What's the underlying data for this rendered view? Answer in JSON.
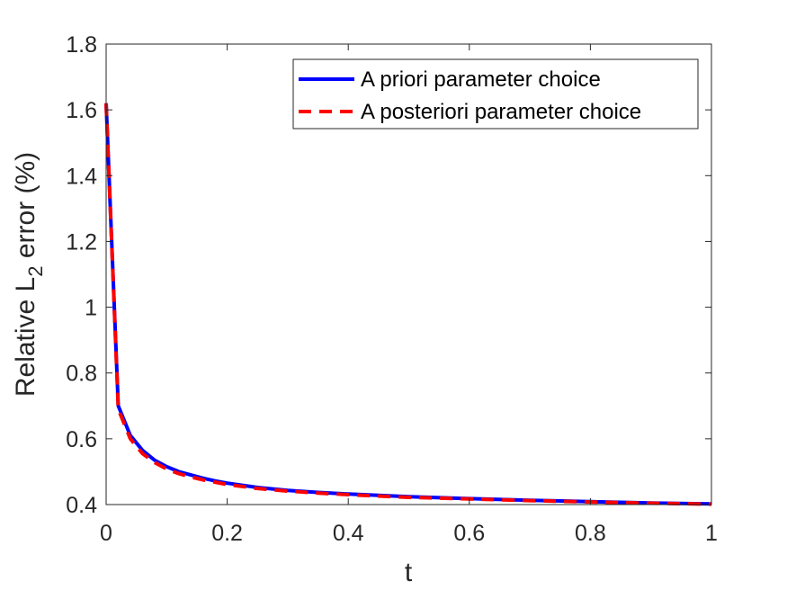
{
  "chart_data": {
    "type": "line",
    "title": "",
    "xlabel": "t",
    "ylabel": "Relative L2 error (%)",
    "ylabel_parts": {
      "before": "Relative L",
      "subscript": "2",
      "after": " error (%)"
    },
    "xlim": [
      0,
      1
    ],
    "ylim": [
      0.4,
      1.8
    ],
    "grid": false,
    "legend_position": "top-right",
    "x_ticks": [
      0,
      0.2,
      0.4,
      0.6,
      0.8,
      1
    ],
    "x_tick_labels": [
      "0",
      "0.2",
      "0.4",
      "0.6",
      "0.8",
      "1"
    ],
    "y_ticks": [
      0.4,
      0.6,
      0.8,
      1.0,
      1.2,
      1.4,
      1.6,
      1.8
    ],
    "y_tick_labels": [
      "0.4",
      "0.6",
      "0.8",
      "1",
      "1.2",
      "1.4",
      "1.6",
      "1.8"
    ],
    "series": [
      {
        "name": "A priori parameter choice",
        "color": "#0000ff",
        "style": "solid",
        "x": [
          0,
          0.02,
          0.04,
          0.06,
          0.08,
          0.1,
          0.12,
          0.14,
          0.16,
          0.18,
          0.2,
          0.25,
          0.3,
          0.35,
          0.4,
          0.5,
          0.6,
          0.7,
          0.8,
          0.9,
          1.0
        ],
        "y": [
          1.62,
          0.7,
          0.61,
          0.565,
          0.535,
          0.515,
          0.5,
          0.49,
          0.48,
          0.472,
          0.465,
          0.452,
          0.443,
          0.437,
          0.432,
          0.424,
          0.418,
          0.413,
          0.409,
          0.405,
          0.402
        ]
      },
      {
        "name": "A posteriori parameter choice",
        "color": "#ff0000",
        "style": "dashed",
        "x": [
          0,
          0.02,
          0.04,
          0.06,
          0.08,
          0.1,
          0.12,
          0.14,
          0.16,
          0.18,
          0.2,
          0.25,
          0.3,
          0.35,
          0.4,
          0.5,
          0.6,
          0.7,
          0.8,
          0.9,
          1.0
        ],
        "y": [
          1.62,
          0.69,
          0.6,
          0.555,
          0.528,
          0.508,
          0.494,
          0.484,
          0.475,
          0.468,
          0.461,
          0.449,
          0.441,
          0.435,
          0.43,
          0.422,
          0.417,
          0.412,
          0.408,
          0.404,
          0.401
        ]
      }
    ]
  }
}
